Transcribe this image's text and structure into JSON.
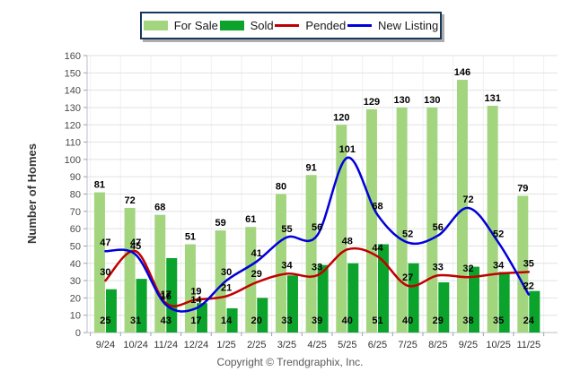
{
  "legend": {
    "items": [
      {
        "label": "For Sale",
        "swatch": "bar"
      },
      {
        "label": "Sold",
        "swatch": "bar"
      },
      {
        "label": "Pended",
        "swatch": "line"
      },
      {
        "label": "New Listing",
        "swatch": "line"
      }
    ]
  },
  "footer": "Copyright © Trendgraphix, Inc.",
  "chart_data": {
    "type": "bar",
    "subtype": "grouped bars with smoothed line overlays",
    "title": "",
    "ylabel": "Number of Homes",
    "xlabel": "",
    "ylim": [
      0,
      160
    ],
    "ytick_step": 10,
    "grid": true,
    "legend_position": "top-center",
    "categories": [
      "9/24",
      "10/24",
      "11/24",
      "12/24",
      "1/25",
      "2/25",
      "3/25",
      "4/25",
      "5/25",
      "6/25",
      "7/25",
      "8/25",
      "9/25",
      "10/25",
      "11/25"
    ],
    "series": [
      {
        "name": "For Sale",
        "type": "bar",
        "color": "#A3D57F",
        "values": [
          81,
          72,
          68,
          51,
          59,
          61,
          80,
          91,
          120,
          129,
          130,
          130,
          146,
          131,
          79
        ]
      },
      {
        "name": "Sold",
        "type": "bar",
        "color": "#0BA32B",
        "values": [
          25,
          31,
          43,
          17,
          14,
          20,
          33,
          39,
          40,
          51,
          40,
          29,
          38,
          35,
          24
        ]
      },
      {
        "name": "Pended",
        "type": "line",
        "color": "#C00000",
        "values": [
          30,
          47,
          17,
          19,
          21,
          29,
          34,
          33,
          48,
          44,
          27,
          33,
          32,
          34,
          35
        ]
      },
      {
        "name": "New Listing",
        "type": "line",
        "color": "#0000DB",
        "values": [
          47,
          45,
          16,
          14,
          30,
          41,
          55,
          56,
          101,
          68,
          52,
          56,
          72,
          52,
          22
        ]
      }
    ]
  }
}
